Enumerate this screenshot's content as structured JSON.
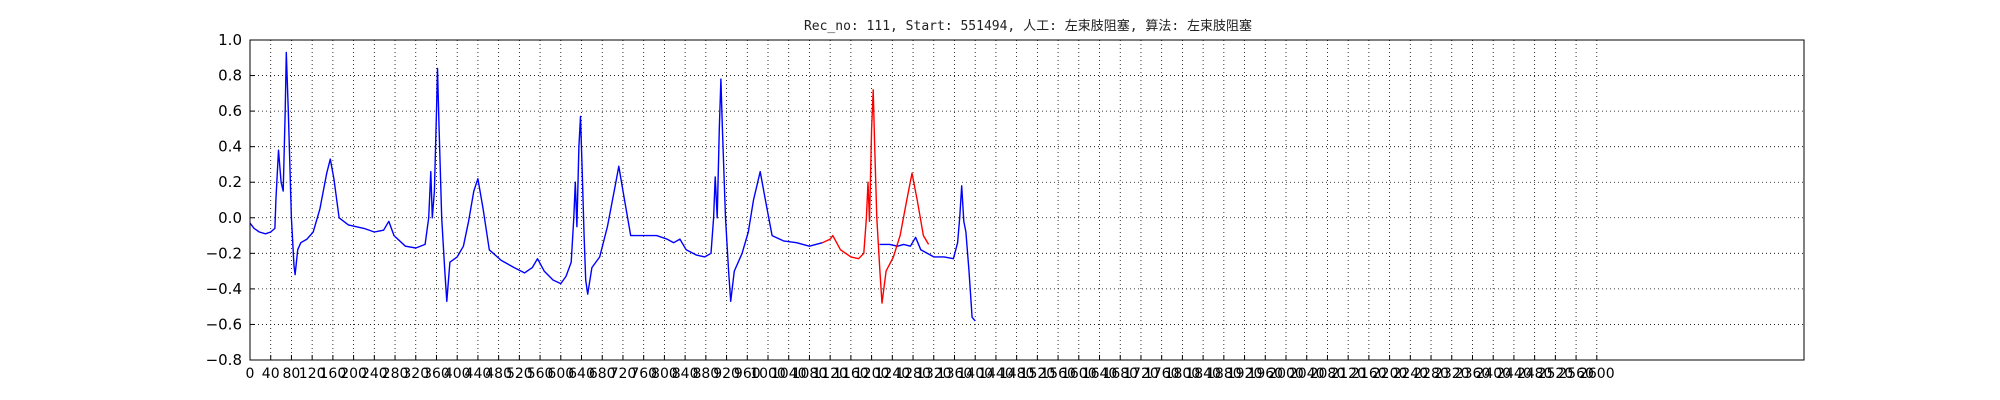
{
  "chart_data": {
    "type": "line",
    "title": "Rec_no: 111, Start: 551494, 人工: 左束肢阻塞, 算法: 左束肢阻塞",
    "xlabel": "",
    "ylabel": "",
    "xlim": [
      0,
      3000
    ],
    "ylim": [
      -0.8,
      1.0
    ],
    "y_ticks": [
      1.0,
      0.8,
      0.6,
      0.4,
      0.2,
      0.0,
      -0.2,
      -0.4,
      -0.6,
      -0.8
    ],
    "y_tick_labels": [
      "1.0",
      "0.8",
      "0.6",
      "0.4",
      "0.2",
      "0.0",
      "−0.2",
      "−0.4",
      "−0.6",
      "−0.8"
    ],
    "x_ticks": [
      0,
      40,
      80,
      120,
      160,
      200,
      240,
      280,
      320,
      360,
      400,
      440,
      480,
      520,
      560,
      600,
      640,
      680,
      720,
      760,
      800,
      840,
      880,
      920,
      960,
      1000,
      1040,
      1080,
      1120,
      1160,
      1200,
      1240,
      1280,
      1320,
      1360,
      1400,
      1440,
      1480,
      1520,
      1560,
      1600,
      1640,
      1680,
      1720,
      1760,
      1800,
      1840,
      1880,
      1920,
      1960,
      2000,
      2040,
      2080,
      2120,
      2160,
      2200,
      2240,
      2280,
      2320,
      2360,
      2400,
      2440,
      2480,
      2520,
      2560,
      2600
    ],
    "grid": true,
    "grid_style": "dotted",
    "series": [
      {
        "color": "#0000ff",
        "segments": [
          [
            [
              0,
              -0.03
            ],
            [
              8,
              -0.06
            ],
            [
              18,
              -0.08
            ],
            [
              30,
              -0.09
            ],
            [
              40,
              -0.08
            ],
            [
              48,
              -0.06
            ],
            [
              50,
              0.1
            ],
            [
              55,
              0.38
            ],
            [
              60,
              0.2
            ],
            [
              64,
              0.15
            ],
            [
              68,
              0.6
            ],
            [
              70,
              0.93
            ],
            [
              74,
              0.6
            ],
            [
              80,
              0.0
            ],
            [
              85,
              -0.27
            ],
            [
              87,
              -0.32
            ],
            [
              92,
              -0.18
            ],
            [
              98,
              -0.14
            ],
            [
              110,
              -0.12
            ],
            [
              122,
              -0.08
            ],
            [
              135,
              0.05
            ],
            [
              148,
              0.25
            ],
            [
              155,
              0.33
            ],
            [
              162,
              0.22
            ],
            [
              172,
              0.0
            ],
            [
              190,
              -0.04
            ],
            [
              220,
              -0.06
            ],
            [
              240,
              -0.08
            ],
            [
              258,
              -0.07
            ],
            [
              268,
              -0.02
            ],
            [
              278,
              -0.1
            ],
            [
              300,
              -0.16
            ],
            [
              320,
              -0.17
            ],
            [
              338,
              -0.15
            ],
            [
              345,
              0.0
            ],
            [
              349,
              0.26
            ],
            [
              352,
              0.0
            ],
            [
              356,
              0.15
            ],
            [
              360,
              0.6
            ],
            [
              362,
              0.84
            ],
            [
              365,
              0.5
            ],
            [
              370,
              0.0
            ],
            [
              376,
              -0.3
            ],
            [
              380,
              -0.47
            ],
            [
              386,
              -0.25
            ],
            [
              400,
              -0.22
            ],
            [
              412,
              -0.16
            ],
            [
              422,
              -0.02
            ],
            [
              432,
              0.15
            ],
            [
              440,
              0.22
            ],
            [
              450,
              0.05
            ],
            [
              462,
              -0.18
            ],
            [
              485,
              -0.24
            ],
            [
              510,
              -0.28
            ],
            [
              530,
              -0.31
            ],
            [
              545,
              -0.28
            ],
            [
              555,
              -0.23
            ],
            [
              568,
              -0.3
            ],
            [
              585,
              -0.35
            ],
            [
              600,
              -0.37
            ],
            [
              610,
              -0.33
            ],
            [
              620,
              -0.25
            ],
            [
              625,
              0.0
            ],
            [
              628,
              0.2
            ],
            [
              631,
              -0.05
            ],
            [
              635,
              0.4
            ],
            [
              638,
              0.57
            ],
            [
              641,
              0.3
            ],
            [
              645,
              -0.1
            ],
            [
              648,
              -0.35
            ],
            [
              652,
              -0.43
            ],
            [
              660,
              -0.28
            ],
            [
              675,
              -0.22
            ],
            [
              690,
              -0.05
            ],
            [
              705,
              0.18
            ],
            [
              712,
              0.29
            ],
            [
              720,
              0.15
            ],
            [
              735,
              -0.1
            ],
            [
              760,
              -0.1
            ],
            [
              785,
              -0.1
            ],
            [
              805,
              -0.12
            ],
            [
              818,
              -0.14
            ],
            [
              830,
              -0.12
            ],
            [
              842,
              -0.18
            ],
            [
              862,
              -0.21
            ],
            [
              878,
              -0.22
            ],
            [
              890,
              -0.2
            ],
            [
              895,
              0.0
            ],
            [
              898,
              0.23
            ],
            [
              902,
              0.0
            ],
            [
              906,
              0.5
            ],
            [
              909,
              0.78
            ],
            [
              912,
              0.5
            ],
            [
              918,
              0.0
            ],
            [
              924,
              -0.3
            ],
            [
              928,
              -0.47
            ],
            [
              935,
              -0.3
            ],
            [
              950,
              -0.2
            ],
            [
              962,
              -0.08
            ],
            [
              972,
              0.1
            ],
            [
              985,
              0.26
            ],
            [
              995,
              0.1
            ],
            [
              1008,
              -0.1
            ],
            [
              1030,
              -0.13
            ],
            [
              1055,
              -0.14
            ],
            [
              1080,
              -0.16
            ],
            [
              1105,
              -0.14
            ]
          ],
          [
            [
              1215,
              -0.15
            ],
            [
              1235,
              -0.15
            ],
            [
              1250,
              -0.16
            ],
            [
              1262,
              -0.15
            ],
            [
              1275,
              -0.16
            ],
            [
              1285,
              -0.11
            ],
            [
              1295,
              -0.18
            ],
            [
              1320,
              -0.22
            ],
            [
              1340,
              -0.22
            ],
            [
              1358,
              -0.23
            ],
            [
              1366,
              -0.14
            ],
            [
              1370,
              0.0
            ],
            [
              1374,
              0.18
            ],
            [
              1378,
              -0.02
            ],
            [
              1382,
              -0.08
            ],
            [
              1388,
              -0.3
            ],
            [
              1394,
              -0.56
            ],
            [
              1400,
              -0.58
            ]
          ]
        ]
      },
      {
        "color": "#ff0000",
        "segments": [
          [
            [
              1105,
              -0.14
            ],
            [
              1120,
              -0.12
            ],
            [
              1125,
              -0.1
            ],
            [
              1140,
              -0.18
            ],
            [
              1160,
              -0.22
            ],
            [
              1175,
              -0.23
            ],
            [
              1185,
              -0.2
            ],
            [
              1190,
              0.0
            ],
            [
              1193,
              0.2
            ],
            [
              1196,
              -0.02
            ],
            [
              1200,
              0.5
            ],
            [
              1203,
              0.72
            ],
            [
              1206,
              0.4
            ],
            [
              1210,
              0.0
            ],
            [
              1216,
              -0.3
            ],
            [
              1220,
              -0.48
            ],
            [
              1228,
              -0.3
            ],
            [
              1242,
              -0.22
            ],
            [
              1255,
              -0.1
            ],
            [
              1268,
              0.1
            ],
            [
              1278,
              0.25
            ],
            [
              1288,
              0.1
            ],
            [
              1300,
              -0.1
            ],
            [
              1310,
              -0.15
            ]
          ]
        ]
      }
    ]
  }
}
